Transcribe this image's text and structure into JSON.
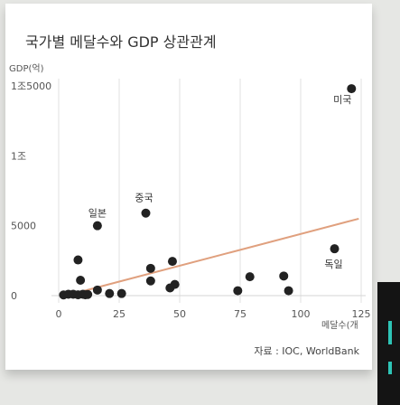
{
  "colors": {
    "background": "#e6e7e4",
    "card": "#ffffff",
    "point": "#222222",
    "trend": "#e0a07e",
    "grid": "#e2e2e2",
    "side_panel": "#141414",
    "side_accent": "#2ec4b6"
  },
  "chart_data": {
    "type": "scatter",
    "title": "국가별 메달수와 GDP 상관관계",
    "xlabel": "메달수(개",
    "ylabel": "GDP(억)",
    "xlim": [
      0,
      125
    ],
    "ylim": [
      0,
      15000
    ],
    "x_ticks": [
      0,
      25,
      50,
      75,
      100,
      125
    ],
    "x_tick_labels": [
      "0",
      "25",
      "50",
      "75",
      "100",
      "125"
    ],
    "y_ticks": [
      0,
      5000,
      10000,
      15000
    ],
    "y_tick_labels": [
      "0",
      "5000",
      "1조",
      "1조5000"
    ],
    "grid": "vertical",
    "source": "자료 : IOC, WorldBank",
    "points": [
      {
        "x": 121,
        "y": 14800
      },
      {
        "x": 36,
        "y": 5900
      },
      {
        "x": 8,
        "y": 2550
      },
      {
        "x": 9,
        "y": 1100
      },
      {
        "x": 38,
        "y": 1950
      },
      {
        "x": 38,
        "y": 1050
      },
      {
        "x": 47,
        "y": 2450
      },
      {
        "x": 48,
        "y": 800
      },
      {
        "x": 46,
        "y": 550
      },
      {
        "x": 79,
        "y": 1350
      },
      {
        "x": 93,
        "y": 1400
      },
      {
        "x": 95,
        "y": 350
      },
      {
        "x": 74,
        "y": 350
      },
      {
        "x": 16,
        "y": 400
      },
      {
        "x": 21,
        "y": 150
      },
      {
        "x": 26,
        "y": 150
      },
      {
        "x": 4,
        "y": 100
      },
      {
        "x": 6,
        "y": 100
      },
      {
        "x": 8,
        "y": 60
      },
      {
        "x": 10,
        "y": 100
      },
      {
        "x": 11,
        "y": 60
      },
      {
        "x": 12,
        "y": 80
      },
      {
        "x": 2,
        "y": 50
      },
      {
        "x": 114,
        "y": 3350
      },
      {
        "x": 16,
        "y": 5000
      }
    ],
    "annotations": [
      {
        "label": "미국",
        "x": 121,
        "y": 14800
      },
      {
        "label": "중국",
        "x": 36,
        "y": 5900
      },
      {
        "label": "일본",
        "x": 16,
        "y": 5000
      },
      {
        "label": "독일",
        "x": 114,
        "y": 3350
      }
    ],
    "trendline": {
      "x": [
        3,
        124
      ],
      "y": [
        0,
        5500
      ]
    }
  }
}
